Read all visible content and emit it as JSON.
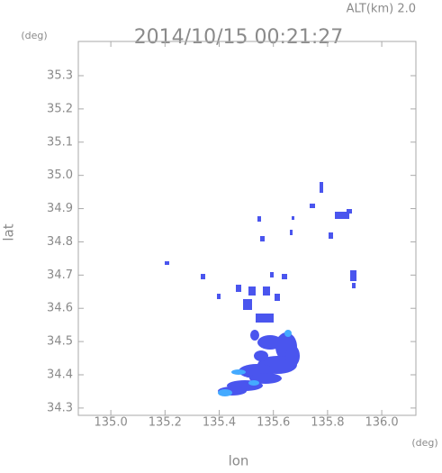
{
  "chart_data": {
    "type": "map",
    "title": "2014/10/15 00:21:27",
    "subtitle": "ALT(km) 2.0",
    "x_label": "lon",
    "x_unit": "(deg)",
    "y_label": "lat",
    "y_unit": "(deg)",
    "xlim": [
      134.88,
      136.126
    ],
    "ylim": [
      34.278,
      35.403
    ],
    "xticks": [
      {
        "value": 135.0,
        "label": "135.0"
      },
      {
        "value": 135.2,
        "label": "135.2"
      },
      {
        "value": 135.4,
        "label": "135.4"
      },
      {
        "value": 135.6,
        "label": "135.6"
      },
      {
        "value": 135.8,
        "label": "135.8"
      },
      {
        "value": 136.0,
        "label": "136.0"
      }
    ],
    "yticks": [
      34.3,
      34.4,
      34.5,
      34.6,
      34.7,
      34.8,
      34.9,
      {
        "value": 35.0,
        "label": "35.0"
      },
      35.1,
      35.2,
      35.3
    ]
  }
}
